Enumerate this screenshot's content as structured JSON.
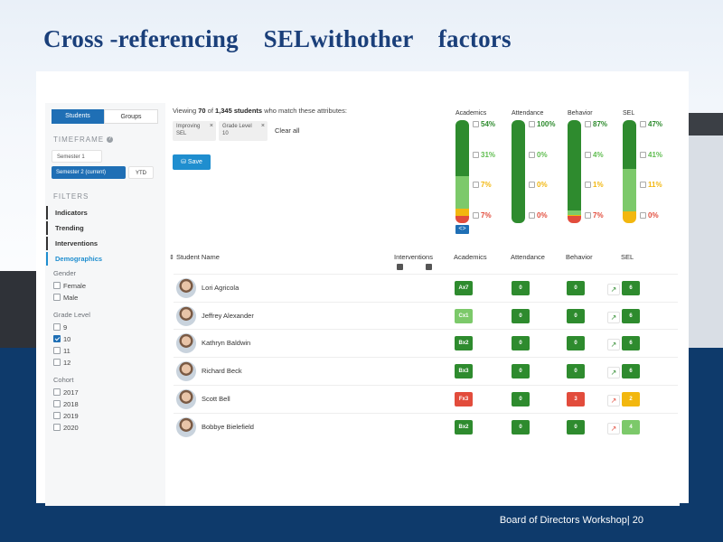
{
  "slide": {
    "title": "Cross -referencing    SELwithother    factors",
    "footer": "Board of Directors Workshop| 20"
  },
  "colors": {
    "dark_green": "#2e8b2e",
    "light_green": "#7cc96a",
    "yellow": "#f2b70f",
    "red": "#e24c3c",
    "blue": "#1f6fb5"
  },
  "sidebar": {
    "tabs": [
      "Students",
      "Groups"
    ],
    "timeframe_heading": "TIMEFRAME",
    "timeframe_options": [
      "Semester 1",
      "Semester 2 (current)",
      "YTD"
    ],
    "filters_heading": "FILTERS",
    "filters": [
      "Indicators",
      "Trending",
      "Interventions",
      "Demographics"
    ],
    "gender_label": "Gender",
    "gender": [
      "Female",
      "Male"
    ],
    "grade_label": "Grade Level",
    "grades": [
      "9",
      "10",
      "11",
      "12"
    ],
    "cohort_label": "Cohort",
    "cohorts": [
      "2017",
      "2018",
      "2019",
      "2020"
    ]
  },
  "header": {
    "viewing_pre": "Viewing ",
    "viewing_count": "70",
    "viewing_mid": " of ",
    "viewing_total": "1,345 students",
    "viewing_post": " who match these attributes:",
    "chips": [
      {
        "label": "Improving",
        "value": "SEL"
      },
      {
        "label": "Grade Level",
        "value": "10"
      }
    ],
    "chip_close": "×",
    "clear_all": "Clear all",
    "save": "Save"
  },
  "summary": [
    {
      "name": "Academics",
      "segments": [
        54,
        31,
        7,
        7
      ],
      "labels": [
        "54%",
        "31%",
        "7%",
        "7%"
      ]
    },
    {
      "name": "Attendance",
      "segments": [
        100,
        0,
        0,
        0
      ],
      "labels": [
        "100%",
        "0%",
        "0%",
        "0%"
      ]
    },
    {
      "name": "Behavior",
      "segments": [
        87,
        4,
        1,
        7
      ],
      "labels": [
        "87%",
        "4%",
        "1%",
        "7%"
      ]
    },
    {
      "name": "SEL",
      "segments": [
        47,
        41,
        11,
        0
      ],
      "labels": [
        "47%",
        "41%",
        "11%",
        "0%"
      ]
    }
  ],
  "table": {
    "headers": {
      "sort": "⇕",
      "student": "Student Name",
      "interventions": "Interventions",
      "academics": "Academics",
      "attendance": "Attendance",
      "behavior": "Behavior",
      "sel": "SEL"
    },
    "rows": [
      {
        "name": "Lori Agricola",
        "academics": "Ax7",
        "ac": "dark_green",
        "attendance": "0",
        "behavior": "0",
        "bc": "dark_green",
        "trend": "↗",
        "tc": "dark_green",
        "sel": "6",
        "sc": "dark_green"
      },
      {
        "name": "Jeffrey Alexander",
        "academics": "Cx1",
        "ac": "light_green",
        "attendance": "0",
        "behavior": "0",
        "bc": "dark_green",
        "trend": "↗",
        "tc": "dark_green",
        "sel": "6",
        "sc": "dark_green"
      },
      {
        "name": "Kathryn Baldwin",
        "academics": "Bx2",
        "ac": "dark_green",
        "attendance": "0",
        "behavior": "0",
        "bc": "dark_green",
        "trend": "↗",
        "tc": "dark_green",
        "sel": "6",
        "sc": "dark_green"
      },
      {
        "name": "Richard Beck",
        "academics": "Bx3",
        "ac": "dark_green",
        "attendance": "0",
        "behavior": "0",
        "bc": "dark_green",
        "trend": "↗",
        "tc": "dark_green",
        "sel": "6",
        "sc": "dark_green"
      },
      {
        "name": "Scott Bell",
        "academics": "Fx3",
        "ac": "red",
        "attendance": "0",
        "behavior": "3",
        "bc": "red",
        "trend": "↗",
        "tc": "red",
        "sel": "2",
        "sc": "yellow"
      },
      {
        "name": "Bobbye Bielefield",
        "academics": "Bx2",
        "ac": "dark_green",
        "attendance": "0",
        "behavior": "0",
        "bc": "dark_green",
        "trend": "↗",
        "tc": "red",
        "sel": "4",
        "sc": "light_green"
      }
    ]
  }
}
